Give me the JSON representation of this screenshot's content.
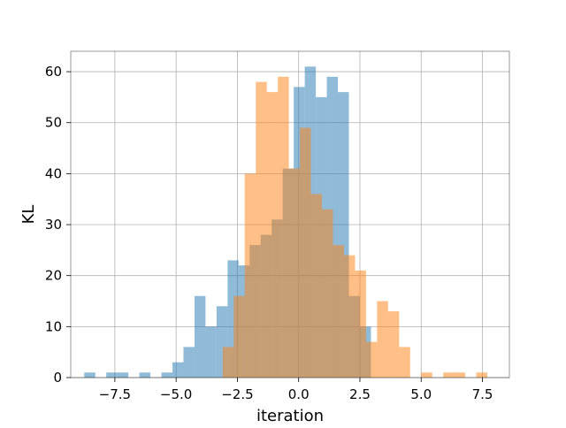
{
  "chart_data": {
    "type": "histogram",
    "title": "",
    "xlabel": "iteration",
    "ylabel": "KL",
    "xlim": [
      -9.3,
      8.6
    ],
    "ylim": [
      0,
      64
    ],
    "grid": true,
    "xticks": [
      -7.5,
      -5.0,
      -2.5,
      0.0,
      2.5,
      5.0,
      7.5
    ],
    "xtick_labels": [
      "−7.5",
      "−5.0",
      "−2.5",
      "0.0",
      "2.5",
      "5.0",
      "7.5"
    ],
    "yticks": [
      0,
      10,
      20,
      30,
      40,
      50,
      60
    ],
    "ytick_labels": [
      "0",
      "10",
      "20",
      "30",
      "40",
      "50",
      "60"
    ],
    "colors": [
      "#1f77b4",
      "#ff7f0e"
    ],
    "alpha": 0.5,
    "series": [
      {
        "bins": [
          [
            -8.75,
            -8.3,
            1
          ],
          [
            -7.85,
            -7.4,
            1
          ],
          [
            -7.4,
            -6.95,
            1
          ],
          [
            -6.5,
            -6.05,
            1
          ],
          [
            -5.6,
            -5.15,
            1
          ],
          [
            -5.15,
            -4.7,
            3
          ],
          [
            -4.7,
            -4.25,
            6
          ],
          [
            -4.25,
            -3.8,
            16
          ],
          [
            -3.8,
            -3.35,
            10
          ],
          [
            -3.35,
            -2.9,
            14
          ],
          [
            -2.9,
            -2.45,
            23
          ],
          [
            -2.45,
            -2.0,
            22
          ],
          [
            -2.0,
            -1.55,
            26
          ],
          [
            -1.55,
            -1.1,
            28
          ],
          [
            -1.1,
            -0.65,
            31
          ],
          [
            -0.65,
            -0.2,
            41
          ],
          [
            -0.2,
            0.25,
            57
          ],
          [
            0.25,
            0.7,
            61
          ],
          [
            0.7,
            1.15,
            55
          ],
          [
            1.15,
            1.6,
            59
          ],
          [
            1.6,
            2.05,
            56
          ],
          [
            2.05,
            2.5,
            16
          ],
          [
            2.5,
            2.95,
            10
          ]
        ]
      },
      {
        "bins": [
          [
            -3.1,
            -2.65,
            6
          ],
          [
            -2.65,
            -2.2,
            16
          ],
          [
            -2.2,
            -1.75,
            40
          ],
          [
            -1.75,
            -1.3,
            58
          ],
          [
            -1.3,
            -0.85,
            56
          ],
          [
            -0.85,
            -0.4,
            59
          ],
          [
            -0.4,
            0.05,
            41
          ],
          [
            0.05,
            0.5,
            49
          ],
          [
            0.5,
            0.95,
            36
          ],
          [
            0.95,
            1.4,
            33
          ],
          [
            1.4,
            1.85,
            26
          ],
          [
            1.85,
            2.3,
            24
          ],
          [
            2.3,
            2.75,
            21
          ],
          [
            2.75,
            3.2,
            7
          ],
          [
            3.2,
            3.65,
            15
          ],
          [
            3.65,
            4.1,
            13
          ],
          [
            4.1,
            4.55,
            6
          ],
          [
            4.55,
            5.0,
            0
          ],
          [
            5.0,
            5.45,
            1
          ],
          [
            5.45,
            5.9,
            0
          ],
          [
            5.9,
            6.35,
            1
          ],
          [
            6.35,
            6.8,
            1
          ],
          [
            6.8,
            7.25,
            0
          ],
          [
            7.25,
            7.7,
            1
          ]
        ]
      }
    ]
  }
}
